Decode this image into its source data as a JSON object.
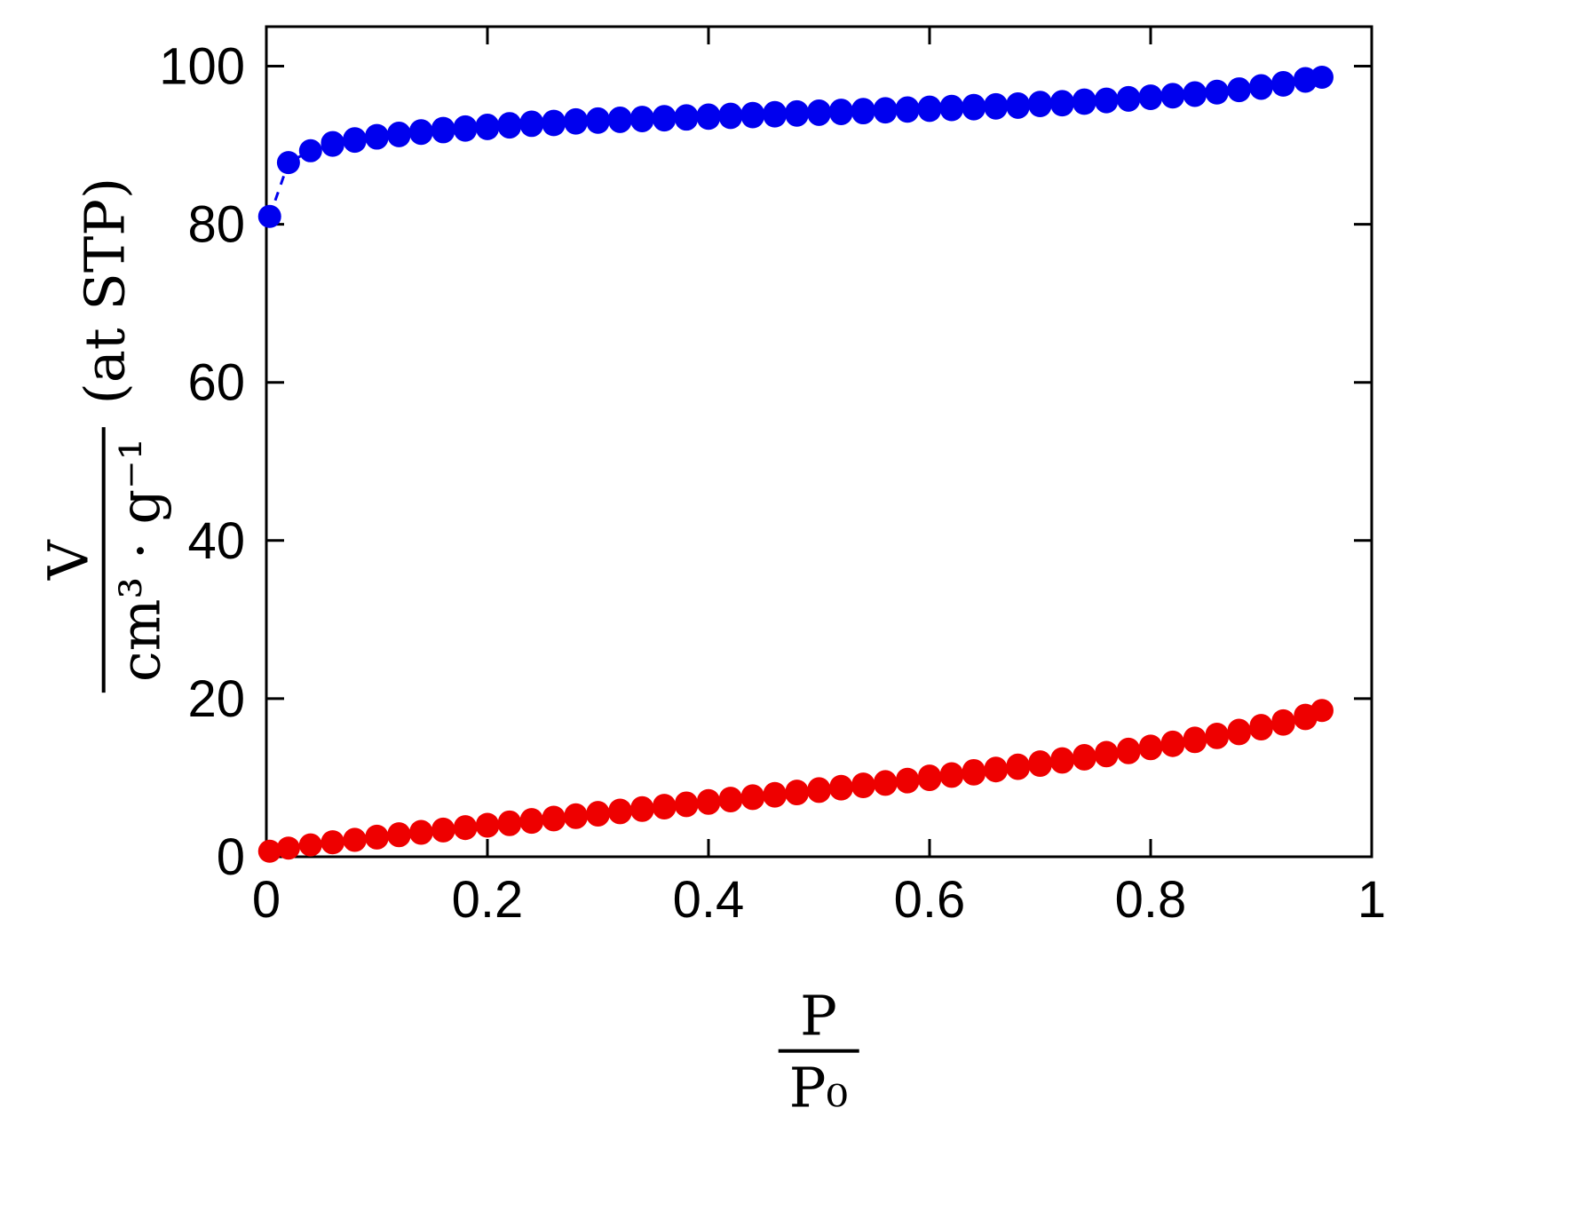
{
  "figure": {
    "background": "#FFFFFF"
  },
  "chart_data": {
    "type": "scatter",
    "title": "",
    "xlabel": {
      "numerator": "P",
      "denominator": "P₀"
    },
    "ylabel": {
      "numerator": "V",
      "denominator": "cm³ · g⁻¹",
      "suffix": "(at STP)"
    },
    "xlim": [
      0,
      1
    ],
    "ylim": [
      0,
      105
    ],
    "x_tick_values": [
      0,
      0.2,
      0.4,
      0.6,
      0.8,
      1
    ],
    "x_tick_labels": [
      "0",
      "0.2",
      "0.4",
      "0.6",
      "0.8",
      "1"
    ],
    "y_tick_values": [
      0,
      20,
      40,
      60,
      80,
      100
    ],
    "y_tick_labels": [
      "0",
      "20",
      "40",
      "60",
      "80",
      "100"
    ],
    "grid": false,
    "legend": "none",
    "axis_color": "#000000",
    "marker_radius": 13,
    "series": [
      {
        "name": "blue-desorption",
        "color": "#0000EE",
        "marker": "open",
        "linestyle": "dashed",
        "x": [
          0.94,
          0.92,
          0.9,
          0.88,
          0.86,
          0.84,
          0.82,
          0.8,
          0.78,
          0.76,
          0.74,
          0.72,
          0.7,
          0.68,
          0.66,
          0.64,
          0.62,
          0.6,
          0.58,
          0.56,
          0.54,
          0.52,
          0.5,
          0.48,
          0.46,
          0.44,
          0.42,
          0.4,
          0.38,
          0.36,
          0.34,
          0.32,
          0.3,
          0.28,
          0.26,
          0.24,
          0.22,
          0.2,
          0.18,
          0.16,
          0.14,
          0.12,
          0.1,
          0.08,
          0.06
        ],
        "y": [
          98.4,
          97.9,
          97.5,
          97.1,
          96.8,
          96.6,
          96.4,
          96.2,
          96.0,
          95.8,
          95.7,
          95.5,
          95.4,
          95.2,
          95.1,
          95.0,
          94.9,
          94.8,
          94.7,
          94.6,
          94.5,
          94.4,
          94.3,
          94.2,
          94.1,
          94.0,
          93.9,
          93.8,
          93.7,
          93.6,
          93.5,
          93.4,
          93.3,
          93.2,
          93.0,
          92.9,
          92.7,
          92.5,
          92.3,
          92.1,
          91.8,
          91.5,
          91.2,
          90.8,
          90.3
        ]
      },
      {
        "name": "blue-adsorption",
        "color": "#0000EE",
        "marker": "filled",
        "linestyle": "dashed",
        "x": [
          0.003,
          0.02,
          0.04,
          0.06,
          0.08,
          0.1,
          0.12,
          0.14,
          0.16,
          0.18,
          0.2,
          0.22,
          0.24,
          0.26,
          0.28,
          0.3,
          0.32,
          0.34,
          0.36,
          0.38,
          0.4,
          0.42,
          0.44,
          0.46,
          0.48,
          0.5,
          0.52,
          0.54,
          0.56,
          0.58,
          0.6,
          0.62,
          0.64,
          0.66,
          0.68,
          0.7,
          0.72,
          0.74,
          0.76,
          0.78,
          0.8,
          0.82,
          0.84,
          0.86,
          0.88,
          0.9,
          0.92,
          0.94,
          0.955
        ],
        "y": [
          81.0,
          87.8,
          89.3,
          90.0,
          90.5,
          90.9,
          91.2,
          91.5,
          91.7,
          91.9,
          92.1,
          92.3,
          92.5,
          92.6,
          92.8,
          92.9,
          93.0,
          93.1,
          93.2,
          93.3,
          93.4,
          93.5,
          93.6,
          93.7,
          93.8,
          93.9,
          94.0,
          94.1,
          94.2,
          94.3,
          94.4,
          94.5,
          94.6,
          94.7,
          94.8,
          95.0,
          95.1,
          95.3,
          95.5,
          95.7,
          95.9,
          96.1,
          96.3,
          96.6,
          96.9,
          97.2,
          97.6,
          98.1,
          98.6
        ]
      },
      {
        "name": "red-desorption",
        "color": "#EE0000",
        "marker": "open",
        "linestyle": "dashed",
        "x": [
          0.94,
          0.92,
          0.9,
          0.88,
          0.86,
          0.84,
          0.82,
          0.8,
          0.78,
          0.76,
          0.74,
          0.72,
          0.7,
          0.68,
          0.66,
          0.64,
          0.62,
          0.6,
          0.58,
          0.56,
          0.54,
          0.52,
          0.5,
          0.48,
          0.46,
          0.44,
          0.42,
          0.4,
          0.38,
          0.36,
          0.34,
          0.32,
          0.3,
          0.28,
          0.26,
          0.24,
          0.22,
          0.2,
          0.18,
          0.16,
          0.14,
          0.12,
          0.1,
          0.08,
          0.06
        ],
        "y": [
          17.5,
          16.8,
          16.2,
          15.6,
          15.1,
          14.6,
          14.1,
          13.7,
          13.2,
          12.8,
          12.4,
          12.0,
          11.6,
          11.2,
          10.9,
          10.5,
          10.2,
          9.8,
          9.5,
          9.2,
          8.9,
          8.6,
          8.3,
          8.0,
          7.7,
          7.4,
          7.1,
          6.8,
          6.5,
          6.2,
          5.9,
          5.6,
          5.3,
          5.0,
          4.7,
          4.4,
          4.1,
          3.9,
          3.6,
          3.3,
          3.0,
          2.7,
          2.4,
          2.1,
          1.8
        ]
      },
      {
        "name": "red-adsorption",
        "color": "#EE0000",
        "marker": "filled",
        "linestyle": "dashed",
        "x": [
          0.003,
          0.02,
          0.04,
          0.06,
          0.08,
          0.1,
          0.12,
          0.14,
          0.16,
          0.18,
          0.2,
          0.22,
          0.24,
          0.26,
          0.28,
          0.3,
          0.32,
          0.34,
          0.36,
          0.38,
          0.4,
          0.42,
          0.44,
          0.46,
          0.48,
          0.5,
          0.52,
          0.54,
          0.56,
          0.58,
          0.6,
          0.62,
          0.64,
          0.66,
          0.68,
          0.7,
          0.72,
          0.74,
          0.76,
          0.78,
          0.8,
          0.82,
          0.84,
          0.86,
          0.88,
          0.9,
          0.92,
          0.94,
          0.955
        ],
        "y": [
          0.7,
          1.1,
          1.5,
          1.9,
          2.2,
          2.6,
          2.9,
          3.2,
          3.5,
          3.8,
          4.1,
          4.4,
          4.7,
          5.0,
          5.3,
          5.6,
          5.9,
          6.2,
          6.5,
          6.8,
          7.1,
          7.4,
          7.7,
          8.0,
          8.3,
          8.6,
          8.9,
          9.2,
          9.5,
          9.8,
          10.2,
          10.5,
          10.9,
          11.2,
          11.6,
          12.0,
          12.4,
          12.8,
          13.2,
          13.6,
          14.0,
          14.5,
          15.0,
          15.5,
          16.0,
          16.6,
          17.2,
          17.9,
          18.5
        ]
      }
    ]
  }
}
